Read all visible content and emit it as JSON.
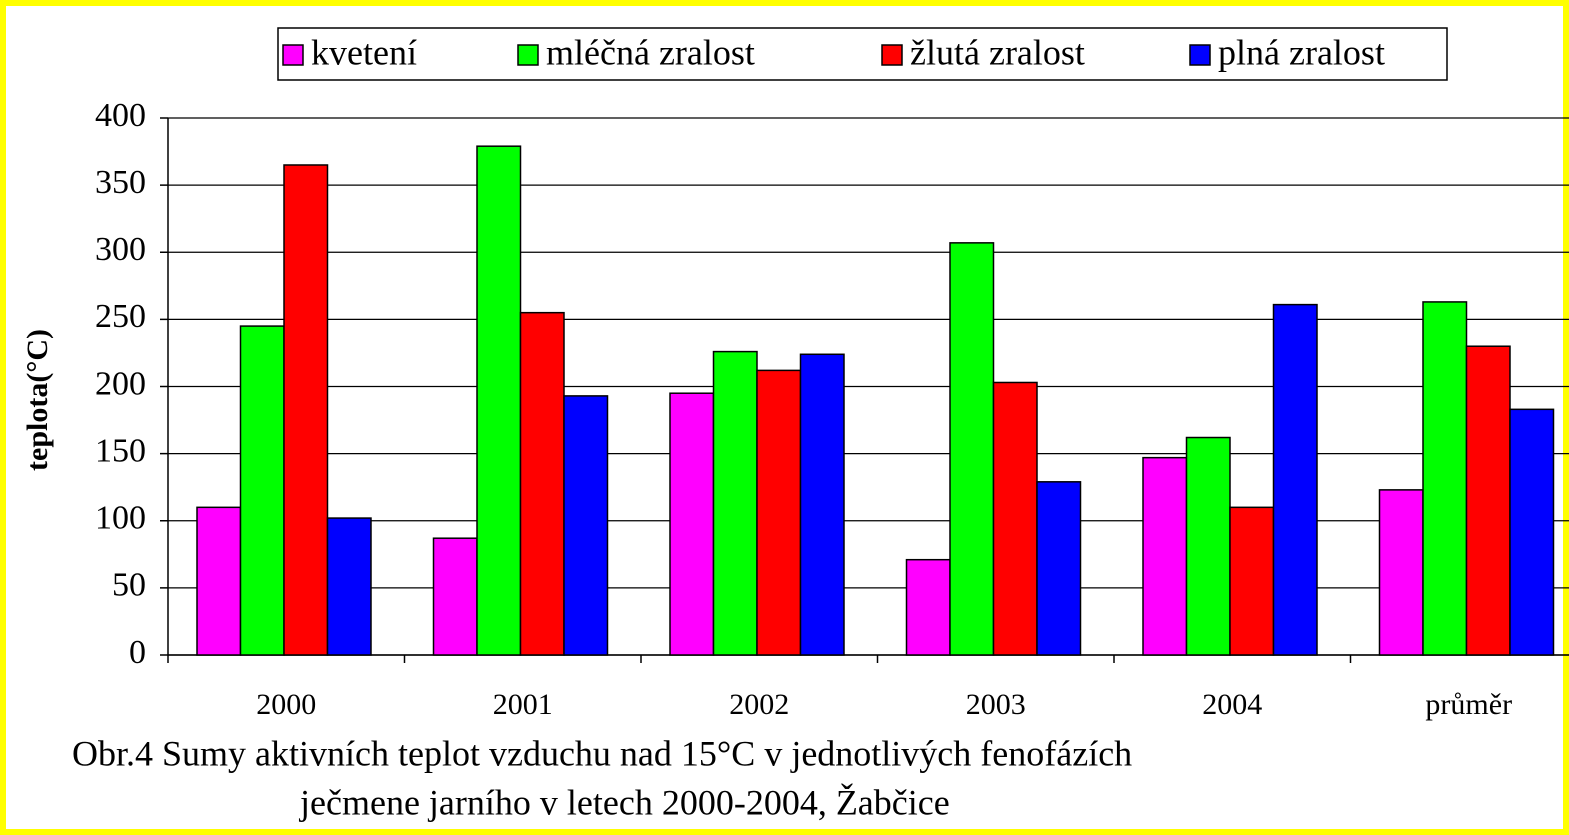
{
  "chart_data": {
    "type": "bar",
    "y_label": "teplota(°C)",
    "caption": [
      "Obr.4 Sumy aktivních teplot vzduchu nad 15°C v jednotlivých fenofázích",
      "ječmene jarního v letech 2000-2004, Žabčice"
    ],
    "categories": [
      "2000",
      "2001",
      "2002",
      "2003",
      "2004",
      "průměr"
    ],
    "series": [
      {
        "name": "kvetení",
        "color": "#ff00ff",
        "values": [
          110,
          87,
          195,
          71,
          147,
          123
        ]
      },
      {
        "name": "mléčná zralost",
        "color": "#00ff00",
        "values": [
          245,
          379,
          226,
          307,
          162,
          263
        ]
      },
      {
        "name": "žlutá zralost",
        "color": "#ff0000",
        "values": [
          365,
          255,
          212,
          203,
          110,
          230
        ]
      },
      {
        "name": "plná zralost",
        "color": "#0000ff",
        "values": [
          102,
          193,
          224,
          129,
          261,
          183
        ]
      }
    ],
    "ylim": [
      0,
      400
    ],
    "yticks": [
      0,
      50,
      100,
      150,
      200,
      250,
      300,
      350,
      400
    ],
    "grid": true,
    "legend": "top"
  }
}
